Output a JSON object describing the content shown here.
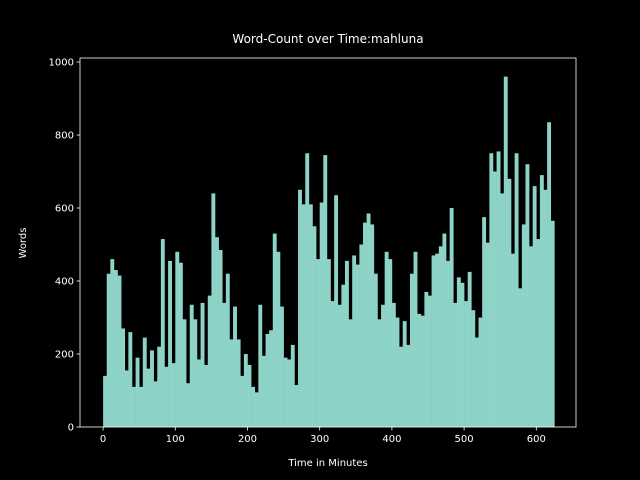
{
  "chart_data": {
    "type": "histogram",
    "title": "Word-Count over Time:mahluna",
    "xlabel": "Time in Minutes",
    "ylabel": "Words",
    "color": "#8dd3c7",
    "bins": [
      0,
      5,
      10,
      15,
      20,
      25,
      30,
      35,
      40,
      45,
      50,
      55,
      60,
      65,
      70,
      75,
      80,
      85,
      90,
      95,
      100,
      105,
      110,
      115,
      120,
      125,
      130,
      135,
      140,
      145,
      150,
      155,
      160,
      165,
      170,
      175,
      180,
      185,
      190,
      195,
      200,
      205,
      210,
      215,
      220,
      225,
      230,
      235,
      240,
      245,
      250,
      255,
      260,
      265,
      270,
      275,
      280,
      285,
      290,
      295,
      300,
      305,
      310,
      315,
      320,
      325,
      330,
      335,
      340,
      345,
      350,
      355,
      360,
      365,
      370,
      375,
      380,
      385,
      390,
      395,
      400,
      405,
      410,
      415,
      420,
      425,
      430,
      435,
      440,
      445,
      450,
      455,
      460,
      465,
      470,
      475,
      480,
      485,
      490,
      495,
      500,
      505,
      510,
      515,
      520,
      525,
      530,
      535,
      540,
      545,
      550,
      555,
      560,
      565,
      570,
      575,
      580,
      585,
      590,
      595,
      600,
      605,
      610,
      615,
      620,
      625
    ],
    "values": [
      140,
      420,
      460,
      430,
      415,
      270,
      155,
      260,
      110,
      190,
      110,
      245,
      160,
      210,
      125,
      220,
      515,
      165,
      455,
      175,
      480,
      450,
      295,
      120,
      335,
      295,
      185,
      340,
      170,
      360,
      640,
      520,
      485,
      340,
      420,
      240,
      330,
      240,
      140,
      200,
      170,
      110,
      95,
      335,
      195,
      255,
      265,
      530,
      480,
      330,
      190,
      185,
      225,
      115,
      650,
      610,
      750,
      610,
      550,
      460,
      615,
      745,
      460,
      345,
      635,
      335,
      390,
      455,
      295,
      470,
      445,
      500,
      560,
      585,
      555,
      420,
      295,
      335,
      480,
      460,
      340,
      300,
      220,
      290,
      225,
      420,
      480,
      310,
      305,
      370,
      360,
      470,
      475,
      495,
      530,
      455,
      600,
      340,
      410,
      395,
      345,
      425,
      320,
      245,
      300,
      575,
      505,
      750,
      700,
      755,
      640,
      960,
      680,
      475,
      750,
      380,
      555,
      720,
      495,
      660,
      515,
      690,
      650,
      835,
      565
    ],
    "xlim": [
      -32,
      655
    ],
    "ylim": [
      0,
      1011
    ],
    "xticks": [
      0,
      100,
      200,
      300,
      400,
      500,
      600
    ],
    "yticks": [
      0,
      200,
      400,
      600,
      800,
      1000
    ]
  }
}
